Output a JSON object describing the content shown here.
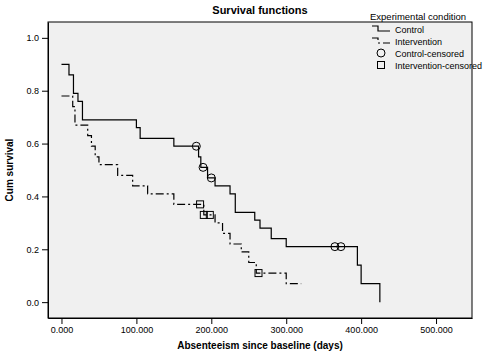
{
  "chart_data": {
    "type": "line",
    "title": "Survival functions",
    "x_label": "Absenteeism since baseline (days)",
    "y_label": "Cum survival",
    "legend_title": "Experimental condition",
    "legend": "top-right",
    "xlim": [
      -18,
      548
    ],
    "ylim": [
      -0.06,
      1.06
    ],
    "xticks": [
      {
        "value": 0,
        "label": "0.000"
      },
      {
        "value": 100,
        "label": "100.000"
      },
      {
        "value": 200,
        "label": "200.000"
      },
      {
        "value": 300,
        "label": "300.000"
      },
      {
        "value": 400,
        "label": "400.000"
      },
      {
        "value": 500,
        "label": "500.000"
      }
    ],
    "yticks": [
      {
        "value": 0,
        "label": "0.0"
      },
      0.2,
      0.4,
      0.6,
      0.8,
      {
        "value": 1,
        "label": "1.0"
      }
    ],
    "series": [
      {
        "name": "Control",
        "type": "step",
        "line_style": "solid",
        "color": "#000000",
        "x": [
          0,
          10,
          16,
          22,
          28,
          100,
          105,
          150,
          183,
          186,
          195,
          205,
          225,
          232,
          258,
          265,
          280,
          300,
          395,
          400,
          425
        ],
        "values": [
          0.9,
          0.86,
          0.79,
          0.76,
          0.69,
          0.66,
          0.62,
          0.59,
          0.55,
          0.51,
          0.47,
          0.44,
          0.41,
          0.34,
          0.31,
          0.28,
          0.24,
          0.21,
          0.14,
          0.07,
          0.0
        ]
      },
      {
        "name": "Intervention",
        "type": "step",
        "line_style": "dashdot",
        "color": "#000000",
        "x": [
          0,
          15,
          18,
          35,
          40,
          45,
          50,
          75,
          95,
          115,
          150,
          190,
          205,
          215,
          225,
          240,
          250,
          260,
          300,
          320
        ],
        "values": [
          0.78,
          0.74,
          0.67,
          0.63,
          0.59,
          0.55,
          0.52,
          0.48,
          0.44,
          0.41,
          0.37,
          0.33,
          0.3,
          0.26,
          0.22,
          0.19,
          0.15,
          0.11,
          0.07,
          0.07
        ]
      },
      {
        "name": "Control-censored",
        "type": "scatter",
        "marker": "circle",
        "color": "#000000",
        "x": [
          180,
          189,
          200,
          365,
          373
        ],
        "values": [
          0.59,
          0.51,
          0.47,
          0.21,
          0.21
        ]
      },
      {
        "name": "Intervention-censored",
        "type": "scatter",
        "marker": "square",
        "color": "#000000",
        "x": [
          185,
          190,
          198,
          263
        ],
        "values": [
          0.37,
          0.33,
          0.33,
          0.11
        ]
      }
    ]
  }
}
